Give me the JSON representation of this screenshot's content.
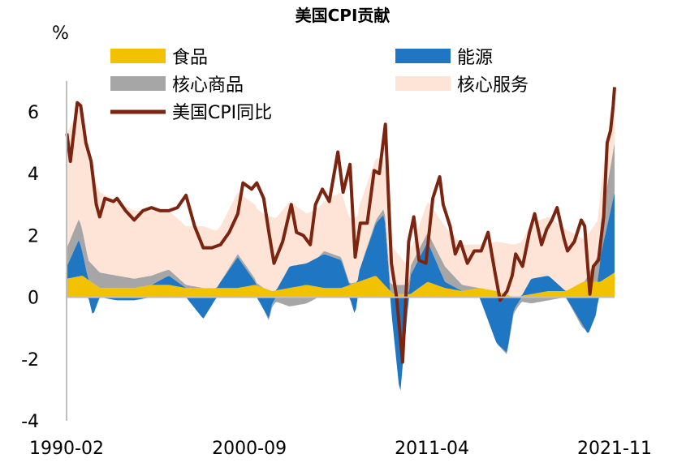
{
  "chart_data": {
    "type": "area",
    "title": "美国CPI贡献",
    "ylabel": "%",
    "ylim": [
      -4,
      7
    ],
    "yticks": [
      "6",
      "4",
      "2",
      "0",
      "-2",
      "-4"
    ],
    "ytick_values": [
      6,
      4,
      2,
      0,
      -2,
      -4
    ],
    "x_range": [
      1990.08,
      2021.83
    ],
    "xtick_labels": [
      "1990-02",
      "2000-09",
      "2011-04",
      "2021-11"
    ],
    "xtick_values": [
      1990.08,
      2000.67,
      2011.25,
      2021.83
    ],
    "legend_position": "top",
    "colors": {
      "food": "#f2c200",
      "energy": "#1f77c4",
      "core_goods": "#a6a6a6",
      "core_services": "#fde4d6",
      "cpi": "#7b2410"
    },
    "series": [
      {
        "name": "食品",
        "key": "food",
        "kind": "stacked-area",
        "points": [
          [
            1990.1,
            0.6
          ],
          [
            1991,
            0.7
          ],
          [
            1992,
            0.3
          ],
          [
            1993,
            0.3
          ],
          [
            1994,
            0.3
          ],
          [
            1995,
            0.4
          ],
          [
            1996,
            0.4
          ],
          [
            1997,
            0.3
          ],
          [
            1998,
            0.3
          ],
          [
            1999,
            0.3
          ],
          [
            2000,
            0.3
          ],
          [
            2001,
            0.4
          ],
          [
            2002,
            0.2
          ],
          [
            2003,
            0.3
          ],
          [
            2004,
            0.4
          ],
          [
            2005,
            0.3
          ],
          [
            2006,
            0.3
          ],
          [
            2007,
            0.5
          ],
          [
            2008,
            0.7
          ],
          [
            2009,
            0.1
          ],
          [
            2010,
            0.1
          ],
          [
            2011,
            0.5
          ],
          [
            2012,
            0.3
          ],
          [
            2013,
            0.2
          ],
          [
            2014,
            0.3
          ],
          [
            2015,
            0.2
          ],
          [
            2016,
            0.0
          ],
          [
            2017,
            0.1
          ],
          [
            2018,
            0.2
          ],
          [
            2019,
            0.2
          ],
          [
            2020,
            0.5
          ],
          [
            2021,
            0.5
          ],
          [
            2021.83,
            0.8
          ]
        ]
      },
      {
        "name": "能源",
        "key": "energy",
        "kind": "stacked-area",
        "points": [
          [
            1990.1,
            0.4
          ],
          [
            1990.8,
            1.2
          ],
          [
            1991.3,
            0.1
          ],
          [
            1991.6,
            -0.6
          ],
          [
            1992,
            0.0
          ],
          [
            1993,
            -0.1
          ],
          [
            1994,
            -0.1
          ],
          [
            1995,
            0.0
          ],
          [
            1996,
            0.3
          ],
          [
            1997,
            0.0
          ],
          [
            1998,
            -0.7
          ],
          [
            1999,
            0.2
          ],
          [
            2000,
            1.0
          ],
          [
            2001,
            0.1
          ],
          [
            2001.8,
            -0.7
          ],
          [
            2002,
            -0.2
          ],
          [
            2003,
            0.7
          ],
          [
            2004,
            0.7
          ],
          [
            2005,
            1.1
          ],
          [
            2006,
            0.9
          ],
          [
            2006.8,
            -0.6
          ],
          [
            2007,
            0.3
          ],
          [
            2008,
            1.7
          ],
          [
            2008.5,
            2.3
          ],
          [
            2008.9,
            -0.5
          ],
          [
            2009.4,
            -3.2
          ],
          [
            2010,
            0.6
          ],
          [
            2011,
            1.3
          ],
          [
            2012,
            0.2
          ],
          [
            2013,
            0.0
          ],
          [
            2014,
            0.0
          ],
          [
            2015,
            -1.5
          ],
          [
            2015.6,
            -1.8
          ],
          [
            2016,
            -0.4
          ],
          [
            2017,
            0.5
          ],
          [
            2018,
            0.5
          ],
          [
            2019,
            0.0
          ],
          [
            2020.3,
            -1.2
          ],
          [
            2020.8,
            -0.5
          ],
          [
            2021,
            0.8
          ],
          [
            2021.83,
            2.6
          ]
        ]
      },
      {
        "name": "核心商品",
        "key": "core_goods",
        "kind": "stacked-area",
        "points": [
          [
            1990.1,
            0.6
          ],
          [
            1991,
            0.7
          ],
          [
            1992,
            0.5
          ],
          [
            1993,
            0.4
          ],
          [
            1994,
            0.3
          ],
          [
            1995,
            0.3
          ],
          [
            1996,
            0.2
          ],
          [
            1997,
            0.1
          ],
          [
            1998,
            0.0
          ],
          [
            1999,
            0.0
          ],
          [
            2000,
            0.1
          ],
          [
            2001,
            0.1
          ],
          [
            2002,
            -0.1
          ],
          [
            2003,
            -0.3
          ],
          [
            2004,
            -0.2
          ],
          [
            2005,
            0.1
          ],
          [
            2006,
            0.1
          ],
          [
            2007,
            0.0
          ],
          [
            2008,
            0.1
          ],
          [
            2009,
            0.3
          ],
          [
            2010,
            0.3
          ],
          [
            2011,
            0.3
          ],
          [
            2012,
            0.5
          ],
          [
            2013,
            0.2
          ],
          [
            2014,
            0.0
          ],
          [
            2015,
            0.0
          ],
          [
            2016,
            -0.1
          ],
          [
            2017,
            -0.2
          ],
          [
            2018,
            -0.1
          ],
          [
            2019,
            0.0
          ],
          [
            2020,
            -0.1
          ],
          [
            2021,
            1.0
          ],
          [
            2021.83,
            1.6
          ]
        ]
      },
      {
        "name": "核心服务",
        "key": "core_services",
        "kind": "stacked-area",
        "points": [
          [
            1990.1,
            3.7
          ],
          [
            1991,
            3.5
          ],
          [
            1992,
            2.6
          ],
          [
            1993,
            2.4
          ],
          [
            1994,
            2.2
          ],
          [
            1995,
            2.1
          ],
          [
            1996,
            1.9
          ],
          [
            1997,
            1.9
          ],
          [
            1998,
            2.0
          ],
          [
            1999,
            1.8
          ],
          [
            2000,
            2.0
          ],
          [
            2001,
            2.4
          ],
          [
            2002,
            2.4
          ],
          [
            2003,
            2.1
          ],
          [
            2004,
            1.6
          ],
          [
            2005,
            1.6
          ],
          [
            2006,
            2.1
          ],
          [
            2007,
            2.1
          ],
          [
            2008,
            2.0
          ],
          [
            2009,
            1.2
          ],
          [
            2010,
            0.5
          ],
          [
            2011,
            1.0
          ],
          [
            2012,
            1.3
          ],
          [
            2013,
            1.3
          ],
          [
            2014,
            1.4
          ],
          [
            2015,
            1.6
          ],
          [
            2016,
            1.7
          ],
          [
            2017,
            1.8
          ],
          [
            2018,
            1.9
          ],
          [
            2019,
            2.0
          ],
          [
            2020,
            1.4
          ],
          [
            2021,
            1.1
          ],
          [
            2021.83,
            1.8
          ]
        ]
      },
      {
        "name": "美国CPI同比",
        "key": "cpi",
        "kind": "line",
        "points": [
          [
            1990.1,
            5.3
          ],
          [
            1990.3,
            4.4
          ],
          [
            1990.7,
            6.3
          ],
          [
            1990.9,
            6.2
          ],
          [
            1991.2,
            5.0
          ],
          [
            1991.5,
            4.4
          ],
          [
            1991.8,
            3.0
          ],
          [
            1992,
            2.6
          ],
          [
            1992.3,
            3.2
          ],
          [
            1992.8,
            3.1
          ],
          [
            1993,
            3.2
          ],
          [
            1993.5,
            2.8
          ],
          [
            1994,
            2.5
          ],
          [
            1994.5,
            2.8
          ],
          [
            1995,
            2.9
          ],
          [
            1995.5,
            2.8
          ],
          [
            1996,
            2.8
          ],
          [
            1996.5,
            2.9
          ],
          [
            1997,
            3.3
          ],
          [
            1997.5,
            2.3
          ],
          [
            1998,
            1.6
          ],
          [
            1998.5,
            1.6
          ],
          [
            1999,
            1.7
          ],
          [
            1999.5,
            2.1
          ],
          [
            2000,
            2.7
          ],
          [
            2000.3,
            3.7
          ],
          [
            2000.8,
            3.5
          ],
          [
            2001.1,
            3.7
          ],
          [
            2001.5,
            3.2
          ],
          [
            2001.8,
            2.1
          ],
          [
            2002.1,
            1.1
          ],
          [
            2002.6,
            1.8
          ],
          [
            2003.1,
            3.0
          ],
          [
            2003.4,
            2.1
          ],
          [
            2003.8,
            2.0
          ],
          [
            2004.2,
            1.7
          ],
          [
            2004.5,
            3.0
          ],
          [
            2004.9,
            3.5
          ],
          [
            2005.3,
            3.1
          ],
          [
            2005.8,
            4.7
          ],
          [
            2006.1,
            3.4
          ],
          [
            2006.5,
            4.3
          ],
          [
            2006.8,
            1.3
          ],
          [
            2007.1,
            2.4
          ],
          [
            2007.5,
            2.4
          ],
          [
            2007.9,
            4.1
          ],
          [
            2008.2,
            4.0
          ],
          [
            2008.55,
            5.6
          ],
          [
            2008.9,
            1.1
          ],
          [
            2009.2,
            0.0
          ],
          [
            2009.55,
            -2.1
          ],
          [
            2009.9,
            1.8
          ],
          [
            2010.2,
            2.6
          ],
          [
            2010.5,
            1.2
          ],
          [
            2010.9,
            1.1
          ],
          [
            2011.3,
            3.2
          ],
          [
            2011.7,
            3.9
          ],
          [
            2011.9,
            3.0
          ],
          [
            2012.3,
            2.3
          ],
          [
            2012.6,
            1.4
          ],
          [
            2012.9,
            1.8
          ],
          [
            2013.3,
            1.1
          ],
          [
            2013.7,
            1.5
          ],
          [
            2014.1,
            1.5
          ],
          [
            2014.5,
            2.1
          ],
          [
            2014.9,
            0.8
          ],
          [
            2015.2,
            -0.1
          ],
          [
            2015.6,
            0.2
          ],
          [
            2015.9,
            0.7
          ],
          [
            2016.1,
            1.4
          ],
          [
            2016.5,
            1.0
          ],
          [
            2016.9,
            2.1
          ],
          [
            2017.2,
            2.7
          ],
          [
            2017.6,
            1.7
          ],
          [
            2017.9,
            2.2
          ],
          [
            2018.2,
            2.5
          ],
          [
            2018.5,
            2.9
          ],
          [
            2018.9,
            1.9
          ],
          [
            2019.1,
            1.5
          ],
          [
            2019.5,
            1.8
          ],
          [
            2019.9,
            2.5
          ],
          [
            2020.1,
            2.3
          ],
          [
            2020.4,
            0.1
          ],
          [
            2020.6,
            1.0
          ],
          [
            2020.9,
            1.2
          ],
          [
            2021.2,
            2.6
          ],
          [
            2021.4,
            5.0
          ],
          [
            2021.6,
            5.4
          ],
          [
            2021.75,
            6.2
          ],
          [
            2021.83,
            6.8
          ]
        ]
      }
    ]
  }
}
